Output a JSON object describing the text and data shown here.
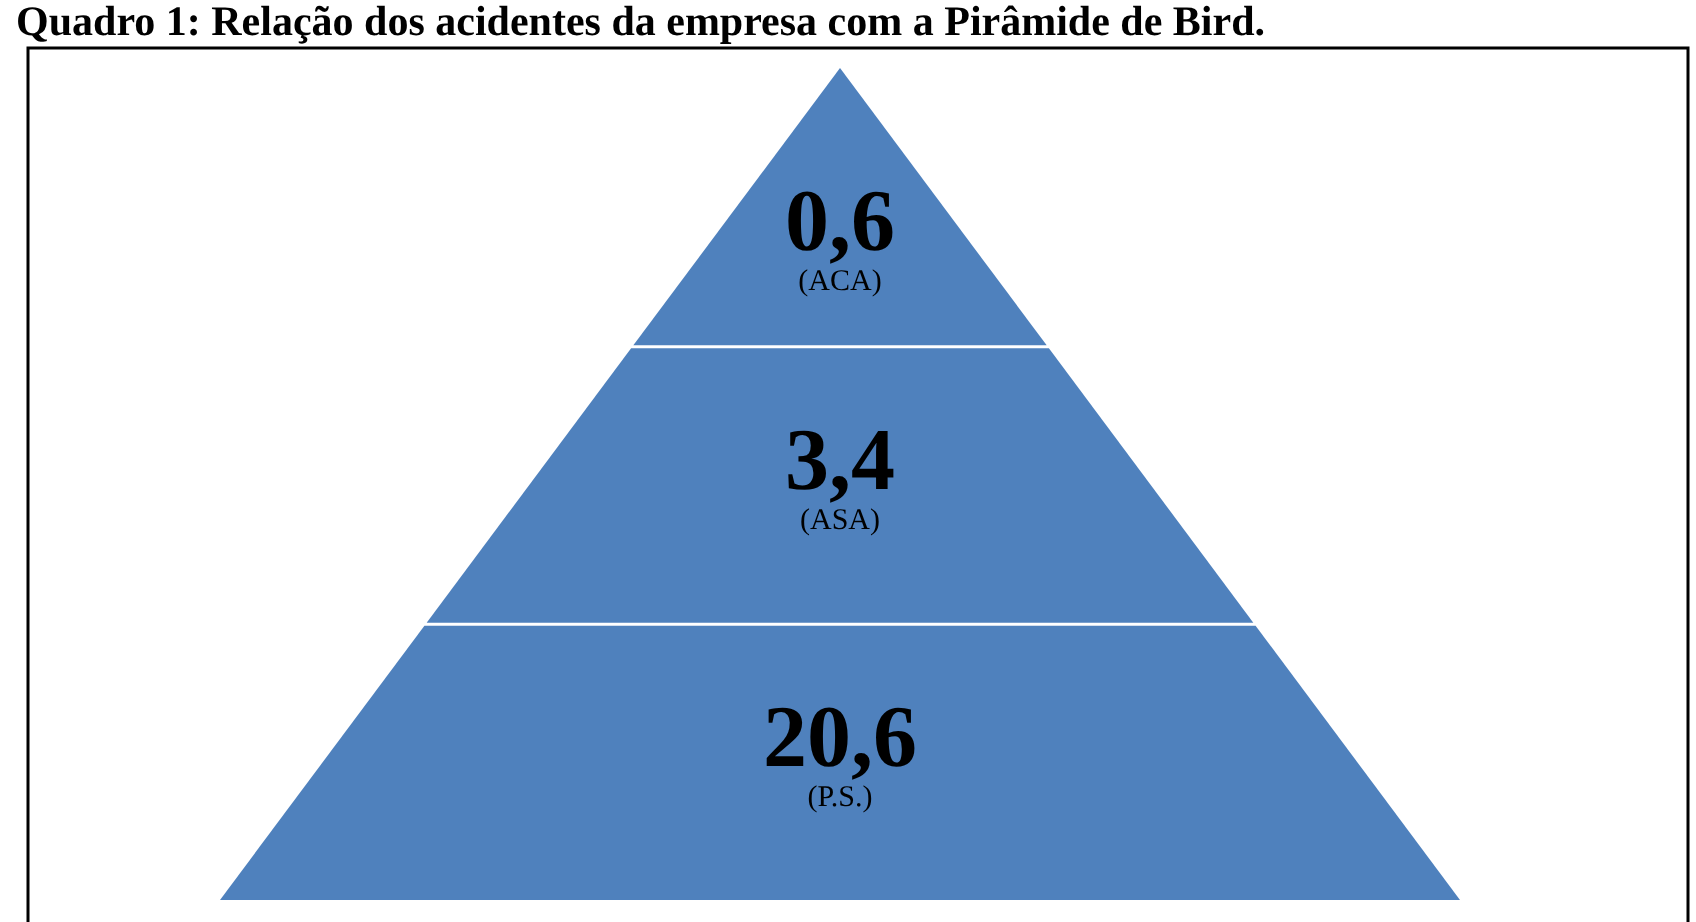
{
  "chart_data": {
    "type": "other",
    "title": "Quadro 1: Relação dos acidentes da empresa com a Pirâmide de Bird.",
    "categories": [
      "(ACA)",
      "(ASA)",
      "(P.S.)"
    ],
    "values": [
      0.6,
      3.4,
      20.6
    ],
    "value_labels": [
      "0,6",
      "3,4",
      "20,6"
    ],
    "color": "#4f81bd"
  }
}
